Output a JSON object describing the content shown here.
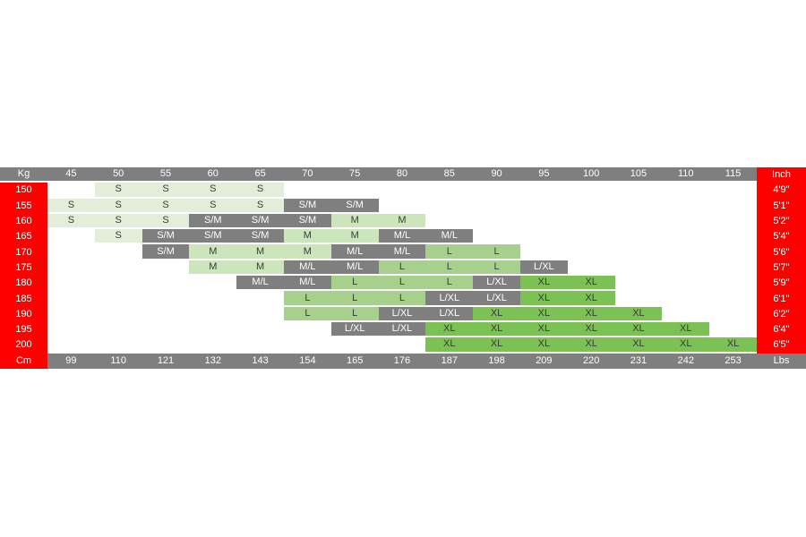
{
  "colors": {
    "red": "#ff0000",
    "gray": "#7f7f7f",
    "size_s_green": "#e2eeda",
    "size_m_green": "#cce5bb",
    "size_l_green": "#a7d08c",
    "size_xl_green": "#7cc153",
    "text_dark": "#3a3a3a",
    "text_light": "#ffffff"
  },
  "chart_data": {
    "type": "table",
    "description": "Clothing size chart: height (Cm / Inch) vs weight (Kg / Lbs) mapped to sizes S, S/M, M, M/L, L, L/XL, XL",
    "corner_labels": {
      "top_left": "Kg",
      "top_right": "Inch",
      "bottom_left": "Cm",
      "bottom_right": "Lbs"
    },
    "weight_kg_columns": [
      "45",
      "50",
      "55",
      "60",
      "65",
      "70",
      "75",
      "80",
      "85",
      "90",
      "95",
      "100",
      "105",
      "110",
      "115"
    ],
    "weight_lbs_values": [
      "99",
      "110",
      "121",
      "132",
      "143",
      "154",
      "165",
      "176",
      "187",
      "198",
      "209",
      "220",
      "231",
      "242",
      "253"
    ],
    "rows": [
      {
        "kg": "150",
        "inch": "4'9\"",
        "cells": [
          null,
          {
            "v": "S",
            "t": "s"
          },
          {
            "v": "S",
            "t": "s"
          },
          {
            "v": "S",
            "t": "s"
          },
          {
            "v": "S",
            "t": "s"
          },
          null,
          null,
          null,
          null,
          null,
          null,
          null,
          null,
          null,
          null
        ]
      },
      {
        "kg": "155",
        "inch": "5'1\"",
        "cells": [
          {
            "v": "S",
            "t": "s"
          },
          {
            "v": "S",
            "t": "s"
          },
          {
            "v": "S",
            "t": "s"
          },
          {
            "v": "S",
            "t": "s"
          },
          {
            "v": "S",
            "t": "s"
          },
          {
            "v": "S/M",
            "t": "g"
          },
          {
            "v": "S/M",
            "t": "g"
          },
          null,
          null,
          null,
          null,
          null,
          null,
          null,
          null
        ]
      },
      {
        "kg": "160",
        "inch": "5'2\"",
        "cells": [
          {
            "v": "S",
            "t": "s"
          },
          {
            "v": "S",
            "t": "s"
          },
          {
            "v": "S",
            "t": "s"
          },
          {
            "v": "S/M",
            "t": "g"
          },
          {
            "v": "S/M",
            "t": "g"
          },
          {
            "v": "S/M",
            "t": "g"
          },
          {
            "v": "M",
            "t": "m"
          },
          {
            "v": "M",
            "t": "m"
          },
          null,
          null,
          null,
          null,
          null,
          null,
          null
        ]
      },
      {
        "kg": "165",
        "inch": "5'4\"",
        "cells": [
          null,
          {
            "v": "S",
            "t": "s"
          },
          {
            "v": "S/M",
            "t": "g"
          },
          {
            "v": "S/M",
            "t": "g"
          },
          {
            "v": "S/M",
            "t": "g"
          },
          {
            "v": "M",
            "t": "m"
          },
          {
            "v": "M",
            "t": "m"
          },
          {
            "v": "M/L",
            "t": "g"
          },
          {
            "v": "M/L",
            "t": "g"
          },
          null,
          null,
          null,
          null,
          null,
          null
        ]
      },
      {
        "kg": "170",
        "inch": "5'6\"",
        "cells": [
          null,
          null,
          {
            "v": "S/M",
            "t": "g"
          },
          {
            "v": "M",
            "t": "m"
          },
          {
            "v": "M",
            "t": "m"
          },
          {
            "v": "M",
            "t": "m"
          },
          {
            "v": "M/L",
            "t": "g"
          },
          {
            "v": "M/L",
            "t": "g"
          },
          {
            "v": "L",
            "t": "l"
          },
          {
            "v": "L",
            "t": "l"
          },
          null,
          null,
          null,
          null,
          null
        ]
      },
      {
        "kg": "175",
        "inch": "5'7\"",
        "cells": [
          null,
          null,
          null,
          {
            "v": "M",
            "t": "m"
          },
          {
            "v": "M",
            "t": "m"
          },
          {
            "v": "M/L",
            "t": "g"
          },
          {
            "v": "M/L",
            "t": "g"
          },
          {
            "v": "L",
            "t": "l"
          },
          {
            "v": "L",
            "t": "l"
          },
          {
            "v": "L",
            "t": "l"
          },
          {
            "v": "L/XL",
            "t": "g"
          },
          null,
          null,
          null,
          null
        ]
      },
      {
        "kg": "180",
        "inch": "5'9\"",
        "cells": [
          null,
          null,
          null,
          null,
          {
            "v": "M/L",
            "t": "g"
          },
          {
            "v": "M/L",
            "t": "g"
          },
          {
            "v": "L",
            "t": "l"
          },
          {
            "v": "L",
            "t": "l"
          },
          {
            "v": "L",
            "t": "l"
          },
          {
            "v": "L/XL",
            "t": "g"
          },
          {
            "v": "XL",
            "t": "xl"
          },
          {
            "v": "XL",
            "t": "xl"
          },
          null,
          null,
          null
        ]
      },
      {
        "kg": "185",
        "inch": "6'1\"",
        "cells": [
          null,
          null,
          null,
          null,
          null,
          {
            "v": "L",
            "t": "l"
          },
          {
            "v": "L",
            "t": "l"
          },
          {
            "v": "L",
            "t": "l"
          },
          {
            "v": "L/XL",
            "t": "g"
          },
          {
            "v": "L/XL",
            "t": "g"
          },
          {
            "v": "XL",
            "t": "xl"
          },
          {
            "v": "XL",
            "t": "xl"
          },
          null,
          null,
          null
        ]
      },
      {
        "kg": "190",
        "inch": "6'2\"",
        "cells": [
          null,
          null,
          null,
          null,
          null,
          {
            "v": "L",
            "t": "l"
          },
          {
            "v": "L",
            "t": "l"
          },
          {
            "v": "L/XL",
            "t": "g"
          },
          {
            "v": "L/XL",
            "t": "g"
          },
          {
            "v": "XL",
            "t": "xl"
          },
          {
            "v": "XL",
            "t": "xl"
          },
          {
            "v": "XL",
            "t": "xl"
          },
          {
            "v": "XL",
            "t": "xl"
          },
          null,
          null
        ]
      },
      {
        "kg": "195",
        "inch": "6'4\"",
        "cells": [
          null,
          null,
          null,
          null,
          null,
          null,
          {
            "v": "L/XL",
            "t": "g"
          },
          {
            "v": "L/XL",
            "t": "g"
          },
          {
            "v": "XL",
            "t": "xl"
          },
          {
            "v": "XL",
            "t": "xl"
          },
          {
            "v": "XL",
            "t": "xl"
          },
          {
            "v": "XL",
            "t": "xl"
          },
          {
            "v": "XL",
            "t": "xl"
          },
          {
            "v": "XL",
            "t": "xl"
          },
          null
        ]
      },
      {
        "kg": "200",
        "inch": "6'5\"",
        "cells": [
          null,
          null,
          null,
          null,
          null,
          null,
          null,
          null,
          {
            "v": "XL",
            "t": "xl"
          },
          {
            "v": "XL",
            "t": "xl"
          },
          {
            "v": "XL",
            "t": "xl"
          },
          {
            "v": "XL",
            "t": "xl"
          },
          {
            "v": "XL",
            "t": "xl"
          },
          {
            "v": "XL",
            "t": "xl"
          },
          {
            "v": "XL",
            "t": "xl"
          }
        ]
      }
    ]
  }
}
